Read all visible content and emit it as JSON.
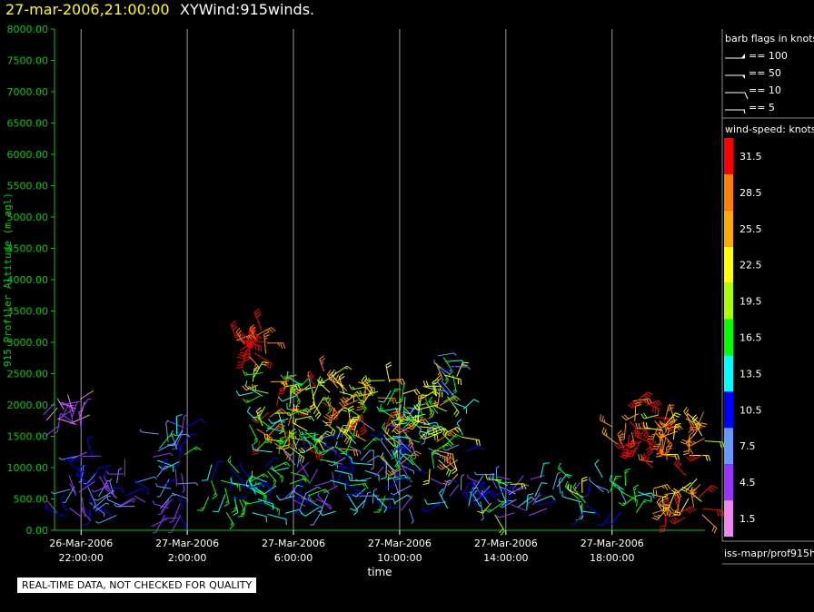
{
  "header": {
    "datetime": "27-mar-2006,21:00:00",
    "title": "XYWind:915winds."
  },
  "notice": "REAL-TIME DATA, NOT CHECKED FOR QUALITY",
  "colors": {
    "background": "#000000",
    "axis_text": "#00cc00",
    "title_date": "#ffff00"
  },
  "chart_data": {
    "type": "wind-barb",
    "xlabel": "time",
    "ylabel": "915 Profiler Altitude (m agl)",
    "ylim": [
      0,
      8000
    ],
    "yticks": [
      "0.00",
      "500.00",
      "1000.00",
      "1500.00",
      "2000.00",
      "2500.00",
      "3000.00",
      "3500.00",
      "4000.00",
      "4500.00",
      "5000.00",
      "5500.00",
      "6000.00",
      "6500.00",
      "7000.00",
      "7500.00",
      "8000.00"
    ],
    "xlim_hours": [
      21.0,
      45.5
    ],
    "xticks": [
      {
        "hour": 22,
        "date": "26-Mar-2006",
        "time": "22:00:00"
      },
      {
        "hour": 26,
        "date": "27-Mar-2006",
        "time": "2:00:00"
      },
      {
        "hour": 30,
        "date": "27-Mar-2006",
        "time": "6:00:00"
      },
      {
        "hour": 34,
        "date": "27-Mar-2006",
        "time": "10:00:00"
      },
      {
        "hour": 38,
        "date": "27-Mar-2006",
        "time": "14:00:00"
      },
      {
        "hour": 42,
        "date": "27-Mar-2006",
        "time": "18:00:00"
      }
    ],
    "grid": "vertical",
    "barb_legend": {
      "title": "barb flags in knots",
      "items": [
        {
          "label": "== 100",
          "flag": "pennant"
        },
        {
          "label": "== 50",
          "flag": "half-pennant"
        },
        {
          "label": "== 10",
          "flag": "full"
        },
        {
          "label": "== 5",
          "flag": "half"
        }
      ]
    },
    "speed_legend": {
      "title": "wind-speed: knots",
      "bins": [
        {
          "label": "31.5",
          "color": "#ff0000"
        },
        {
          "label": "28.5",
          "color": "#ff8000"
        },
        {
          "label": "25.5",
          "color": "#ffaa00"
        },
        {
          "label": "22.5",
          "color": "#ffff00"
        },
        {
          "label": "19.5",
          "color": "#aaff00"
        },
        {
          "label": "16.5",
          "color": "#00ff00"
        },
        {
          "label": "13.5",
          "color": "#00ffff"
        },
        {
          "label": "10.5",
          "color": "#0000ff"
        },
        {
          "label": "7.5",
          "color": "#6699ff"
        },
        {
          "label": "4.5",
          "color": "#9933ff"
        },
        {
          "label": "1.5",
          "color": "#ee88ee"
        }
      ]
    },
    "source": "iss-mapr/prof915h",
    "clusters": [
      {
        "t0": 21.0,
        "t1": 22.0,
        "z0": 1600,
        "z1": 2150,
        "speed": [
          1.5,
          6
        ]
      },
      {
        "t0": 21.0,
        "t1": 22.8,
        "z0": 150,
        "z1": 1200,
        "speed": [
          3,
          12
        ]
      },
      {
        "t0": 22.8,
        "t1": 24.3,
        "z0": 200,
        "z1": 900,
        "speed": [
          3,
          11
        ]
      },
      {
        "t0": 24.7,
        "t1": 26.0,
        "z0": 1100,
        "z1": 1650,
        "speed": [
          3,
          18
        ]
      },
      {
        "t0": 24.8,
        "t1": 26.0,
        "z0": 150,
        "z1": 1000,
        "speed": [
          3,
          10
        ]
      },
      {
        "t0": 26.8,
        "t1": 30.0,
        "z0": 250,
        "z1": 1100,
        "speed": [
          9,
          18
        ]
      },
      {
        "t0": 27.8,
        "t1": 29.0,
        "z0": 2700,
        "z1": 3200,
        "speed": [
          28,
          33
        ]
      },
      {
        "t0": 28.3,
        "t1": 32.0,
        "z0": 1200,
        "z1": 2550,
        "speed": [
          12,
          32
        ]
      },
      {
        "t0": 30.0,
        "t1": 34.5,
        "z0": 300,
        "z1": 1600,
        "speed": [
          3,
          17
        ]
      },
      {
        "t0": 31.5,
        "t1": 35.0,
        "z0": 1400,
        "z1": 2400,
        "speed": [
          14,
          32
        ]
      },
      {
        "t0": 33.5,
        "t1": 36.5,
        "z0": 900,
        "z1": 2200,
        "speed": [
          8,
          30
        ]
      },
      {
        "t0": 35.3,
        "t1": 36.3,
        "z0": 2000,
        "z1": 2800,
        "speed": [
          6,
          28
        ]
      },
      {
        "t0": 35.5,
        "t1": 38.5,
        "z0": 300,
        "z1": 900,
        "speed": [
          3,
          14
        ]
      },
      {
        "t0": 37.3,
        "t1": 41.0,
        "z0": 250,
        "z1": 850,
        "speed": [
          3,
          22
        ]
      },
      {
        "t0": 41.0,
        "t1": 43.0,
        "z0": 250,
        "z1": 850,
        "speed": [
          7,
          18
        ]
      },
      {
        "t0": 42.0,
        "t1": 44.3,
        "z0": 1300,
        "z1": 2100,
        "speed": [
          24,
          33
        ]
      },
      {
        "t0": 43.5,
        "t1": 45.5,
        "z0": 1400,
        "z1": 1900,
        "speed": [
          20,
          30
        ]
      },
      {
        "t0": 43.5,
        "t1": 45.5,
        "z0": 200,
        "z1": 1250,
        "speed": [
          22,
          34
        ]
      }
    ]
  }
}
